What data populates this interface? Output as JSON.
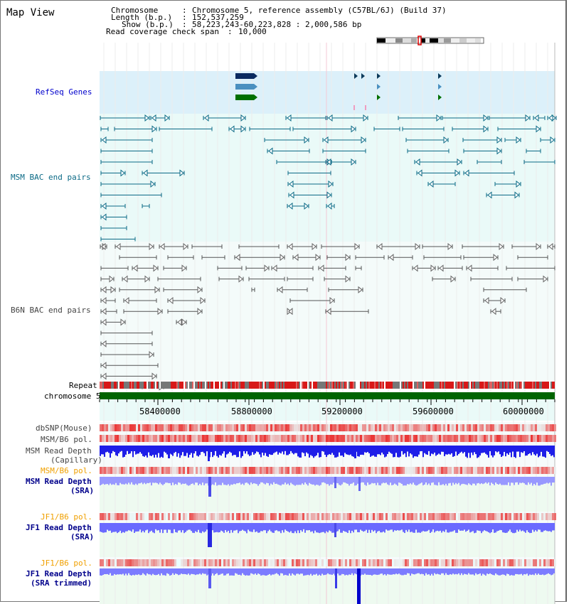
{
  "app": {
    "title": "Map View"
  },
  "info": {
    "chromosome_label": "Chromosome",
    "chromosome_value": "Chromosome 5, reference assembly (C57BL/6J) (Build 37)",
    "length_label": "Length (b.p.)",
    "length_value": "152,537,259",
    "show_label": "Show (b.p.)",
    "show_value": "58,223,243-60,223,828 : 2,000,586 bp",
    "coverage_label": "Read coverage check span",
    "coverage_value": "10,000"
  },
  "tracks": {
    "refseq": "RefSeq Genes",
    "msm_bac": "MSM BAC end pairs",
    "b6n_bac": "B6N BAC end pairs",
    "repeat": "Repeat",
    "chromosome": "chromosome 5",
    "dbsnp": "dbSNP(Mouse)",
    "msm_b6_pol_1": "MSM/B6 pol.",
    "msm_read_depth_cap_1": "MSM Read Depth",
    "msm_read_depth_cap_2": "(Capillary)",
    "msm_b6_pol_2": "MSM/B6 pol.",
    "msm_read_depth_sra_1": "MSM Read Depth",
    "msm_read_depth_sra_2": "(SRA)",
    "jf1_b6_pol_1": "JF1/B6 pol.",
    "jf1_read_depth_sra_1": "JF1 Read Depth",
    "jf1_read_depth_sra_2": "(SRA)",
    "jf1_b6_pol_2": "JF1/B6 pol.",
    "jf1_read_depth_trim_1": "JF1 Read Depth",
    "jf1_read_depth_trim_2": "(SRA trimmed)"
  },
  "axis": {
    "ticks": [
      "58400000",
      "58800000",
      "59200000",
      "59600000",
      "60000000"
    ]
  },
  "colors": {
    "refseq_bg": "#dcf0fa",
    "bac_bg": "#eafaf8",
    "msm_feature": "#0b6a86",
    "b6n_feature": "#555555",
    "chromosome_bar": "#006400",
    "depth_blue": "#2a2aff",
    "depth_light": "#8080ff",
    "pol_red": "#e83030"
  }
}
